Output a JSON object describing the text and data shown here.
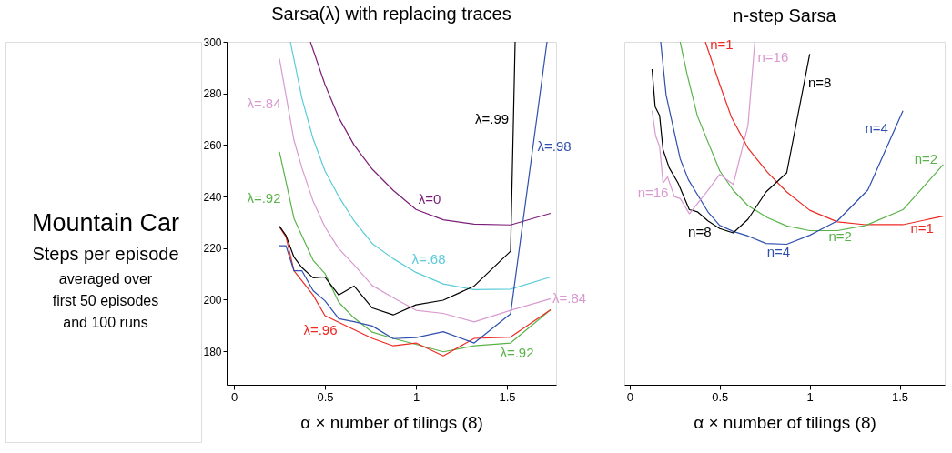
{
  "chart_data": [
    {
      "type": "line",
      "title": "Sarsa(λ) with replacing traces",
      "xlabel": "α × number of tilings (8)",
      "ylabel": "Steps per episode",
      "xlim": [
        -0.04,
        1.77
      ],
      "xticks": [
        0,
        0.5,
        1,
        1.5
      ],
      "ylim": [
        167,
        300
      ],
      "yticks": [
        180,
        200,
        220,
        240,
        260,
        280,
        300
      ],
      "grid": false,
      "legend": false,
      "series": [
        {
          "color": "#7b1e7a",
          "x": [
            0.42,
            0.5,
            0.576,
            0.66,
            0.76,
            0.875,
            1,
            1.15,
            1.32,
            1.52,
            1.74
          ],
          "values": [
            300,
            283.5,
            270.6,
            260,
            250.6,
            242.4,
            235,
            231,
            229.3,
            229,
            233.5
          ]
        },
        {
          "color": "#5bcbd8",
          "x": [
            0.31,
            0.374,
            0.435,
            0.5,
            0.576,
            0.66,
            0.76,
            0.875,
            1,
            1.15,
            1.32,
            1.52,
            1.74
          ],
          "values": [
            300,
            278,
            262.4,
            250,
            240,
            230.6,
            221.8,
            215.9,
            210.6,
            206.1,
            203.9,
            204.1,
            208.8
          ]
        },
        {
          "color": "#d99ad0",
          "x": [
            0.25,
            0.33,
            0.374,
            0.435,
            0.5,
            0.576,
            0.66,
            0.76,
            0.875,
            1,
            1.15,
            1.32,
            1.52,
            1.74
          ],
          "values": [
            293.5,
            261.8,
            251,
            238.2,
            228.2,
            219.8,
            213.5,
            205.5,
            200.8,
            195.9,
            194.7,
            191.4,
            195.9,
            200.4
          ]
        },
        {
          "color": "#5ab34a",
          "x": [
            0.25,
            0.33,
            0.435,
            0.5,
            0.576,
            0.66,
            0.76,
            0.875,
            1,
            1.15,
            1.32,
            1.52,
            1.74
          ],
          "values": [
            257.4,
            231.5,
            215.3,
            210.2,
            199,
            192.9,
            187.4,
            185,
            182.7,
            179.8,
            182.1,
            183.2,
            196.1
          ]
        },
        {
          "color": "#ee2a24",
          "x": [
            0.25,
            0.286,
            0.33,
            0.435,
            0.5,
            0.76,
            0.875,
            1,
            1.15,
            1.32,
            1.52,
            1.74
          ],
          "values": [
            228.2,
            224.4,
            211.2,
            201.8,
            193.8,
            185,
            182.1,
            183.2,
            178.2,
            185,
            185.5,
            196.1
          ]
        },
        {
          "color": "#2f4fae",
          "x": [
            0.25,
            0.286,
            0.33,
            0.374,
            0.435,
            0.5,
            0.576,
            0.66,
            0.76,
            0.875,
            1,
            1.15,
            1.32,
            1.52,
            1.72
          ],
          "values": [
            220.9,
            220.9,
            211.2,
            211.2,
            203.5,
            199.6,
            192.6,
            191.5,
            189.8,
            184.9,
            185.3,
            187.6,
            183.2,
            194.5,
            300
          ]
        },
        {
          "color": "#000000",
          "x": [
            0.25,
            0.286,
            0.33,
            0.374,
            0.435,
            0.5,
            0.576,
            0.66,
            0.76,
            0.875,
            1,
            1.15,
            1.32,
            1.52,
            1.545
          ],
          "values": [
            228.5,
            224.9,
            216.5,
            212.4,
            208.5,
            208.8,
            201.8,
            205.3,
            196.8,
            194.1,
            198,
            199.8,
            205.3,
            218.8,
            300
          ]
        }
      ],
      "annotations": [
        "Mountain Car",
        "averaged over first 50 episodes and 100 runs",
        {
          "text": "λ=.84",
          "x": 0.25,
          "y": 293.5
        },
        {
          "text": "λ=.92",
          "x": 0.25,
          "y": 257.4
        },
        {
          "text": "λ=.99",
          "x": 1.536,
          "y": 270
        },
        {
          "text": "λ=.98",
          "x": 1.643,
          "y": 259.6
        },
        {
          "text": "λ=0",
          "x": 1,
          "y": 235
        },
        {
          "text": "λ=.68",
          "x": 1,
          "y": 210.6
        },
        {
          "text": "λ=.84",
          "x": 1.74,
          "y": 200.4
        },
        {
          "text": "λ=.96",
          "x": 0.5,
          "y": 193.8
        },
        {
          "text": "λ=.92",
          "x": 1.52,
          "y": 183.2
        }
      ]
    },
    {
      "type": "line",
      "title": "n-step Sarsa",
      "xlabel": "α × number of tilings (8)",
      "xlim": [
        -0.03,
        1.75
      ],
      "xticks": [
        0,
        0.5,
        1,
        1.5
      ],
      "ylim": [
        167,
        300
      ],
      "tick_labels": "x",
      "grid": false,
      "legend": false,
      "series": [
        {
          "color": "#ee2a24",
          "x": [
            0.42,
            0.5,
            0.566,
            0.657,
            0.765,
            0.872,
            1,
            1.154,
            1.31,
            1.518,
            1.742
          ],
          "values": [
            300,
            283.5,
            270.6,
            258.8,
            249.4,
            241.8,
            234.7,
            230.2,
            229.1,
            229.1,
            232.4
          ]
        },
        {
          "color": "#5ab34a",
          "x": [
            0.28,
            0.318,
            0.376,
            0.5,
            0.575,
            0.657,
            0.765,
            0.872,
            1,
            1.154,
            1.31,
            1.518,
            1.742
          ],
          "values": [
            300,
            287.6,
            271.2,
            250,
            242.4,
            236.5,
            231.8,
            228.6,
            226.8,
            226.8,
            228.8,
            234.9,
            252.4
          ]
        },
        {
          "color": "#2f4fae",
          "x": [
            0.172,
            0.202,
            0.28,
            0.326,
            0.434,
            0.5,
            0.575,
            0.657,
            0.757,
            0.872,
            1,
            1.154,
            1.323,
            1.518
          ],
          "values": [
            300,
            279.4,
            254.7,
            246.5,
            234.1,
            228.8,
            226.5,
            224.7,
            221.8,
            221.5,
            225,
            230.6,
            242.6,
            273.3
          ]
        },
        {
          "color": "#000000",
          "x": [
            0.124,
            0.141,
            0.166,
            0.185,
            0.219,
            0.268,
            0.331,
            0.376,
            0.434,
            0.5,
            0.575,
            0.657,
            0.757,
            0.872,
            1
          ],
          "values": [
            289.4,
            274.9,
            271.4,
            258.2,
            251.2,
            245.3,
            234.9,
            234.1,
            230.6,
            227.6,
            225.9,
            231.2,
            241.8,
            249.2,
            295.3
          ]
        },
        {
          "color": "#d99ad0",
          "x": [
            0.124,
            0.144,
            0.166,
            0.185,
            0.21,
            0.248,
            0.281,
            0.331,
            0.434,
            0.5,
            0.575,
            0.657,
            0.695
          ],
          "values": [
            273.3,
            263.5,
            259.4,
            245.3,
            247.6,
            240,
            239.2,
            233.3,
            242.4,
            248.6,
            244.7,
            267.6,
            300
          ]
        }
      ],
      "annotations": [
        {
          "text": "n=1",
          "x": 0.42,
          "y": 300
        },
        {
          "text": "n=16",
          "x": 0.695,
          "y": 300
        },
        {
          "text": "n=8",
          "x": 1,
          "y": 295.3
        },
        {
          "text": "n=4",
          "x": 1.518,
          "y": 273.3
        },
        {
          "text": "n=2",
          "x": 1.742,
          "y": 252.4
        },
        {
          "text": "n=16",
          "x": 0.185,
          "y": 245.3
        },
        {
          "text": "n=8",
          "x": 0.5,
          "y": 227.6
        },
        {
          "text": "n=4",
          "x": 0.872,
          "y": 221.5
        },
        {
          "text": "n=2",
          "x": 1.154,
          "y": 226.8
        },
        {
          "text": "n=1",
          "x": 1.518,
          "y": 229.1
        }
      ]
    }
  ]
}
